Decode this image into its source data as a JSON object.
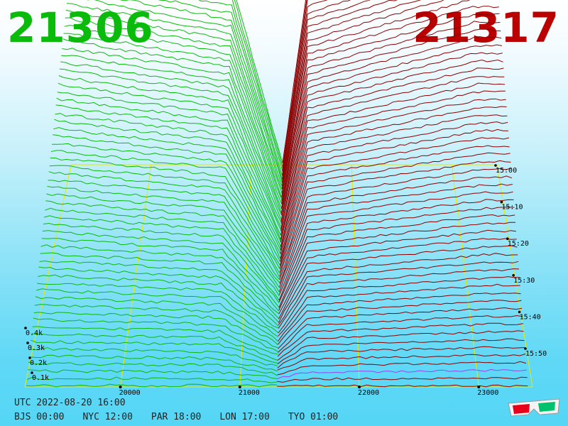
{
  "header": {
    "bid_price": "21306",
    "ask_price": "21317",
    "bid_color": "#0bbb0b",
    "ask_color": "#bb0000"
  },
  "footer": {
    "utc": "UTC 2022-08-20 16:00",
    "zones": [
      "BJS 00:00",
      "NYC 12:00",
      "PAR 18:00",
      "LON 17:00",
      "TYO 01:00"
    ]
  },
  "chart_data": {
    "type": "area",
    "x_axis": {
      "ticks": [
        20000,
        21000,
        22000,
        23000
      ],
      "labels": [
        "20000",
        "21000",
        "22000",
        "23000"
      ]
    },
    "z_axis": {
      "ticks": [
        0.1,
        0.2,
        0.3,
        0.4
      ],
      "labels": [
        "0.1k",
        "0.2k",
        "0.3k",
        "0.4k"
      ]
    },
    "time_axis": {
      "labels": [
        "15:00",
        "15:10",
        "15:20",
        "15:30",
        "15:40",
        "15:50"
      ]
    },
    "bid_side_color": "#0bbb0b",
    "ask_side_color": "#8b0000",
    "latest_row_color": "#a040ff",
    "grid_color": "#e8e800",
    "icon": "3d-glasses-icon"
  }
}
